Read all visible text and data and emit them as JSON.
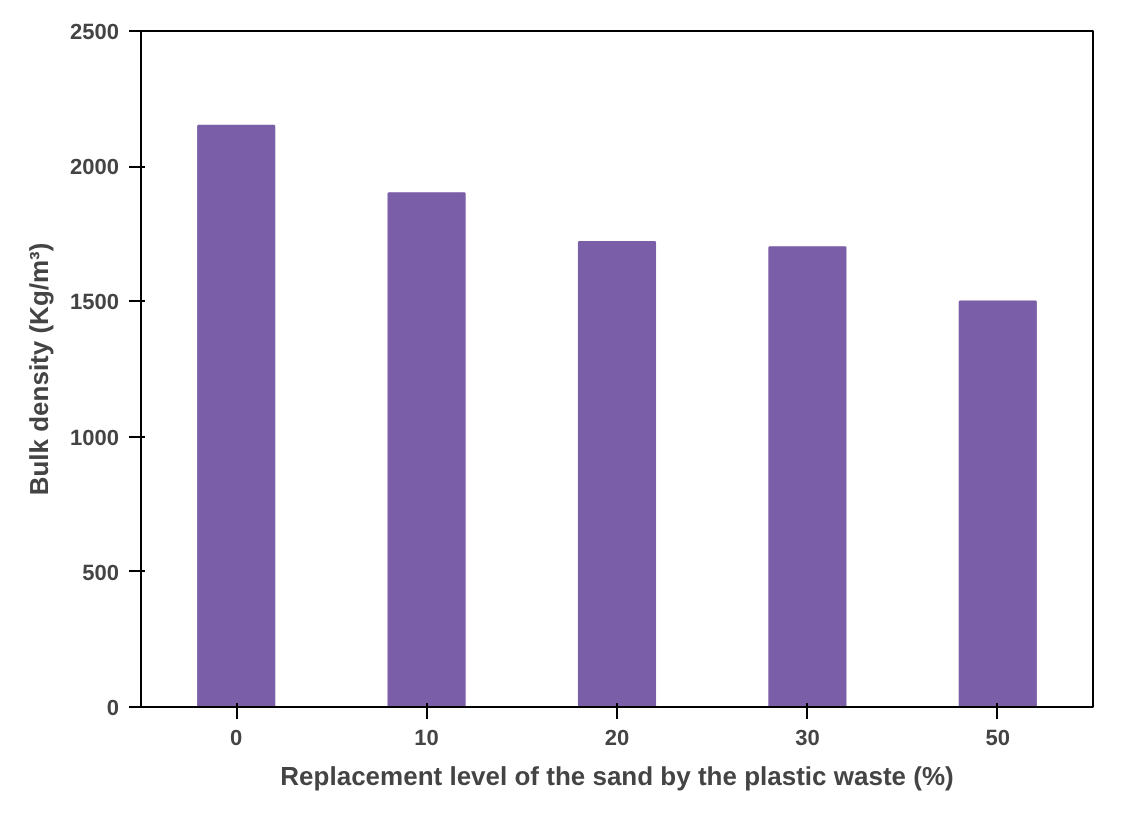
{
  "chart_data": {
    "type": "bar",
    "xlabel": "Replacement level of the sand by the plastic waste (%)",
    "ylabel": "Bulk density (Kg/m³)",
    "categories": [
      "0",
      "10",
      "20",
      "30",
      "50"
    ],
    "values": [
      2150,
      1900,
      1720,
      1700,
      1500
    ],
    "color": "#7b5ea8",
    "ylim": [
      0,
      2500
    ],
    "yticks": [
      0,
      500,
      1000,
      1500,
      2000,
      2500
    ],
    "grid": false
  }
}
